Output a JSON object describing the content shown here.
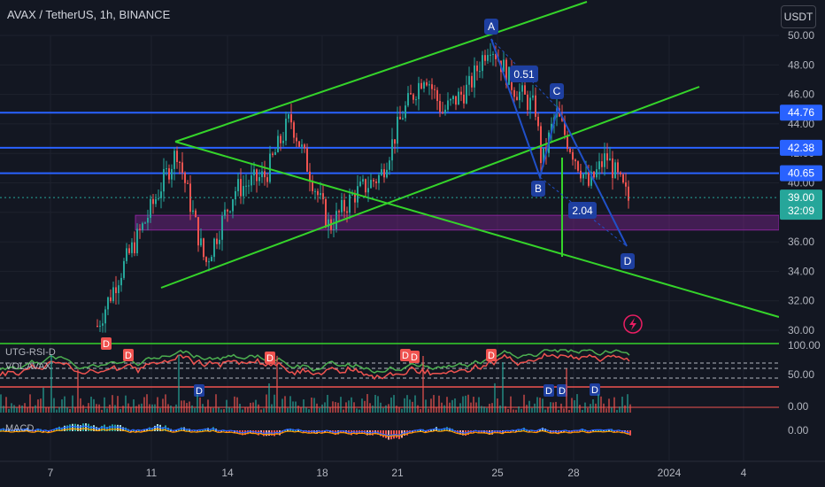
{
  "header": {
    "symbol_title": "AVAX / TetherUS, 1h, BINANCE",
    "currency_button": "USDT"
  },
  "indicators": {
    "label1": "UTG-RSI-D",
    "label2": "VOL AVAX",
    "label3": "MACD"
  },
  "colors": {
    "background": "#131722",
    "up": "#26a69a",
    "down": "#ef5350",
    "channel": "#35d42a",
    "hline": "#2962ff",
    "zone": "#9c27b0",
    "pattern": "#1e3a8a"
  },
  "chart_data": {
    "type": "candlestick",
    "y_axis": {
      "ticks": [
        "50.00",
        "48.00",
        "46.00",
        "44.00",
        "42.00",
        "40.00",
        "38.00",
        "36.00",
        "34.00",
        "32.00",
        "30.00"
      ],
      "range": [
        29.5,
        50.5
      ]
    },
    "x_axis": {
      "ticks": [
        "7",
        "11",
        "14",
        "18",
        "21",
        "25",
        "28",
        "2024",
        "4"
      ]
    },
    "price_labels": [
      {
        "value": 44.76,
        "text": "44.76"
      },
      {
        "value": 42.38,
        "text": "42.38"
      },
      {
        "value": 40.65,
        "text": "40.65"
      }
    ],
    "last_price": {
      "value": 39.0,
      "text": "39.00",
      "countdown": "32:09"
    },
    "pattern_points": [
      {
        "label": "A",
        "price": 49.8
      },
      {
        "label": "B",
        "price": 41.0
      },
      {
        "label": "C",
        "price": 45.0
      },
      {
        "label": "D",
        "price": 35.8
      }
    ],
    "ratios": [
      "0.51",
      "2.04"
    ],
    "zone": {
      "low": 36.8,
      "high": 37.8
    },
    "oscillator_axis": [
      "100.00",
      "50.00",
      "0.00"
    ],
    "macd_axis": [
      "0.00"
    ],
    "signal_markers": [
      "D",
      "D",
      "D",
      "D",
      "D",
      "D",
      "D",
      "D",
      "D",
      "D",
      "D",
      "D"
    ]
  }
}
